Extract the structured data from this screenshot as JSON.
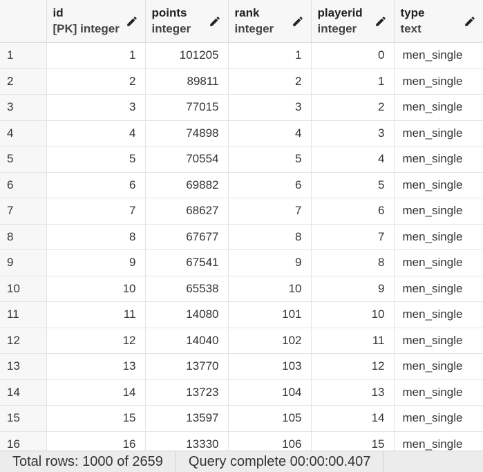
{
  "columns": [
    {
      "name": "id",
      "type": "[PK] integer"
    },
    {
      "name": "points",
      "type": "integer"
    },
    {
      "name": "rank",
      "type": "integer"
    },
    {
      "name": "playerid",
      "type": "integer"
    },
    {
      "name": "type",
      "type": "text"
    }
  ],
  "rows": [
    {
      "n": "1",
      "id": "1",
      "points": "101205",
      "rank": "1",
      "playerid": "0",
      "type": "men_single"
    },
    {
      "n": "2",
      "id": "2",
      "points": "89811",
      "rank": "2",
      "playerid": "1",
      "type": "men_single"
    },
    {
      "n": "3",
      "id": "3",
      "points": "77015",
      "rank": "3",
      "playerid": "2",
      "type": "men_single"
    },
    {
      "n": "4",
      "id": "4",
      "points": "74898",
      "rank": "4",
      "playerid": "3",
      "type": "men_single"
    },
    {
      "n": "5",
      "id": "5",
      "points": "70554",
      "rank": "5",
      "playerid": "4",
      "type": "men_single"
    },
    {
      "n": "6",
      "id": "6",
      "points": "69882",
      "rank": "6",
      "playerid": "5",
      "type": "men_single"
    },
    {
      "n": "7",
      "id": "7",
      "points": "68627",
      "rank": "7",
      "playerid": "6",
      "type": "men_single"
    },
    {
      "n": "8",
      "id": "8",
      "points": "67677",
      "rank": "8",
      "playerid": "7",
      "type": "men_single"
    },
    {
      "n": "9",
      "id": "9",
      "points": "67541",
      "rank": "9",
      "playerid": "8",
      "type": "men_single"
    },
    {
      "n": "10",
      "id": "10",
      "points": "65538",
      "rank": "10",
      "playerid": "9",
      "type": "men_single"
    },
    {
      "n": "11",
      "id": "11",
      "points": "14080",
      "rank": "101",
      "playerid": "10",
      "type": "men_single"
    },
    {
      "n": "12",
      "id": "12",
      "points": "14040",
      "rank": "102",
      "playerid": "11",
      "type": "men_single"
    },
    {
      "n": "13",
      "id": "13",
      "points": "13770",
      "rank": "103",
      "playerid": "12",
      "type": "men_single"
    },
    {
      "n": "14",
      "id": "14",
      "points": "13723",
      "rank": "104",
      "playerid": "13",
      "type": "men_single"
    },
    {
      "n": "15",
      "id": "15",
      "points": "13597",
      "rank": "105",
      "playerid": "14",
      "type": "men_single"
    },
    {
      "n": "16",
      "id": "16",
      "points": "13330",
      "rank": "106",
      "playerid": "15",
      "type": "men_single"
    }
  ],
  "footer": {
    "total_rows": "Total rows: 1000 of 2659",
    "query_status": "Query complete 00:00:00.407"
  },
  "icons": {
    "edit": "pencil-icon"
  }
}
